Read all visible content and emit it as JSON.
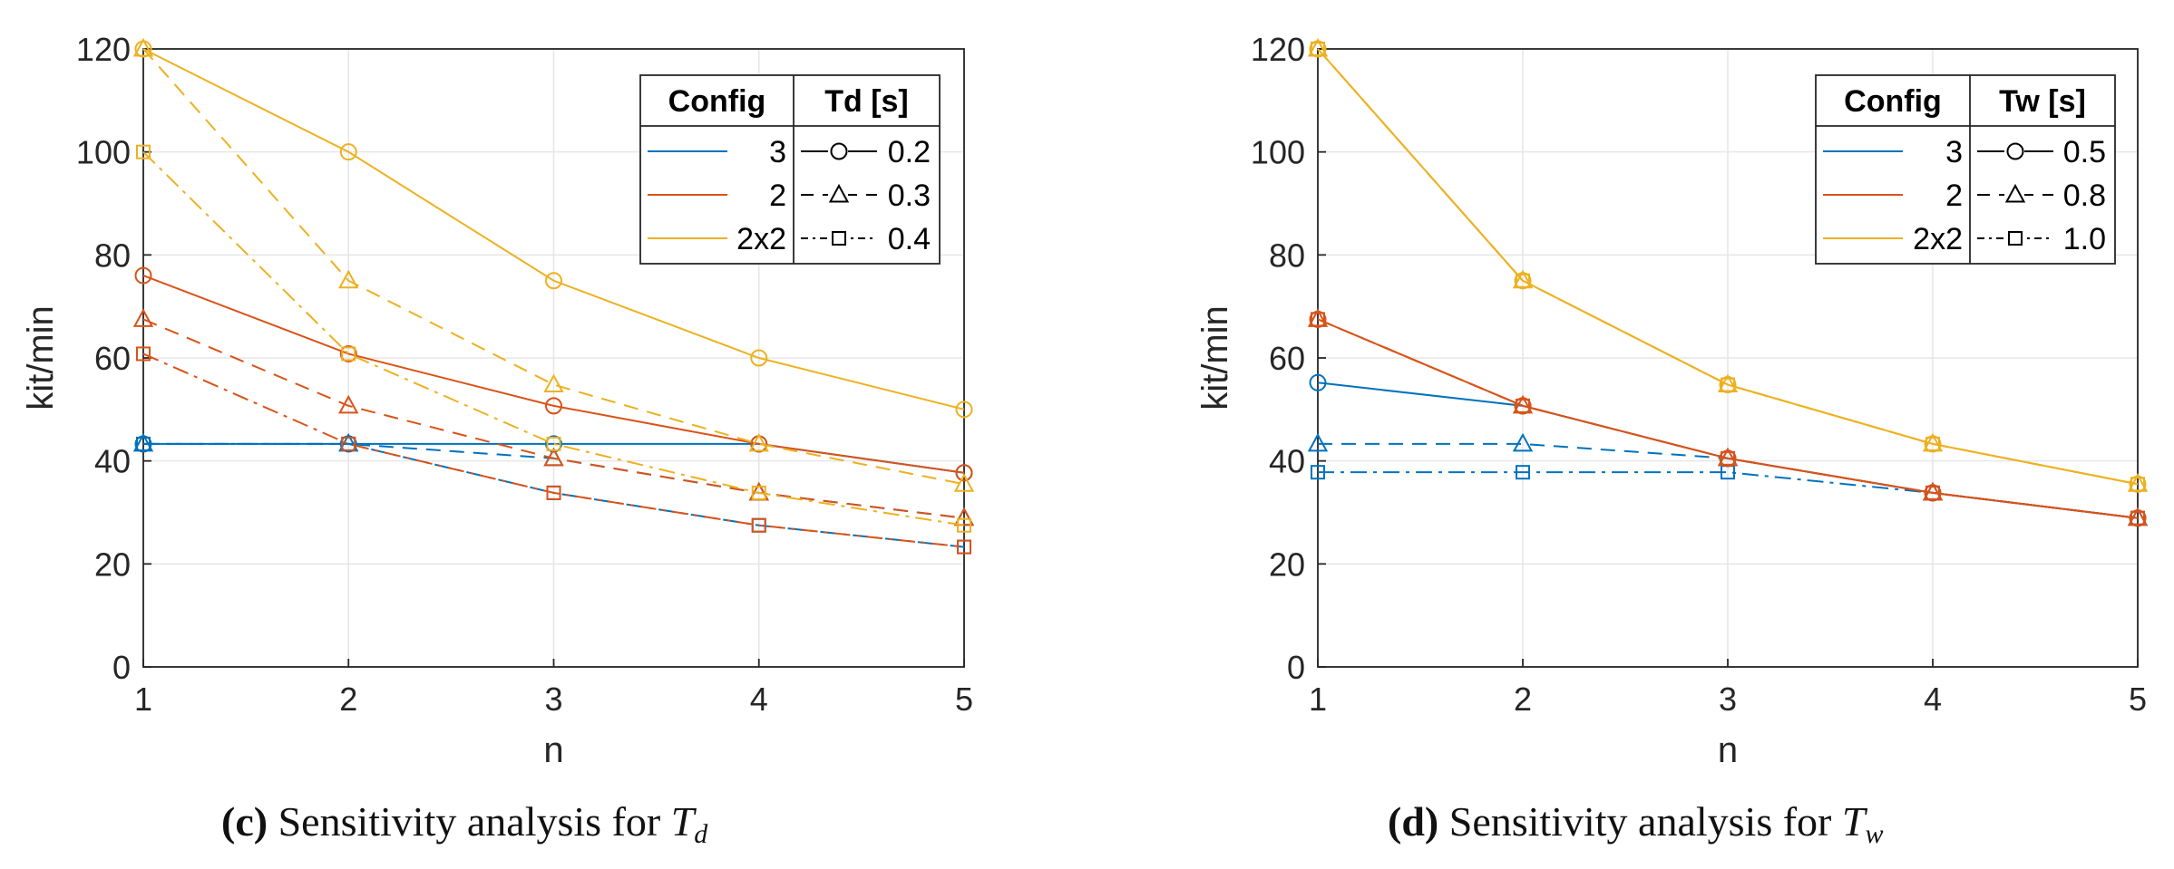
{
  "colors": {
    "config_3": "#0072BD",
    "config_2": "#D95319",
    "config_2x2": "#EDB120",
    "grid": "#e6e6e6",
    "axis": "#262626"
  },
  "chart_data": [
    {
      "type": "line",
      "caption_letter": "(c)",
      "caption_text": "Sensitivity analysis for",
      "caption_var": "T",
      "caption_sub": "d",
      "xlabel": "n",
      "ylabel": "kit/min",
      "x": [
        1,
        2,
        3,
        4,
        5
      ],
      "xticks": [
        "1",
        "2",
        "3",
        "4",
        "5"
      ],
      "yticks": [
        "0",
        "20",
        "40",
        "60",
        "80",
        "100",
        "120"
      ],
      "xlim": [
        1,
        5
      ],
      "ylim": [
        0,
        120
      ],
      "grid": true,
      "legend": {
        "position": "top-right",
        "header_config": "Config",
        "header_param": "Td [s]",
        "configs": [
          "3",
          "2",
          "2x2"
        ],
        "params": [
          "0.2",
          "0.3",
          "0.4"
        ]
      },
      "series": [
        {
          "name": "3, Td=0.2",
          "config": "3",
          "param": "0.2",
          "values": [
            43.3,
            43.3,
            43.3,
            43.3,
            37.7
          ]
        },
        {
          "name": "3, Td=0.3",
          "config": "3",
          "param": "0.3",
          "values": [
            43.3,
            43.3,
            40.5,
            33.8,
            28.9
          ]
        },
        {
          "name": "3, Td=0.4",
          "config": "3",
          "param": "0.4",
          "values": [
            43.3,
            43.3,
            33.8,
            27.5,
            23.3
          ]
        },
        {
          "name": "2, Td=0.2",
          "config": "2",
          "param": "0.2",
          "values": [
            76.0,
            60.8,
            50.7,
            43.3,
            37.7
          ]
        },
        {
          "name": "2, Td=0.3",
          "config": "2",
          "param": "0.3",
          "values": [
            67.5,
            50.7,
            40.5,
            33.8,
            28.9
          ]
        },
        {
          "name": "2, Td=0.4",
          "config": "2",
          "param": "0.4",
          "values": [
            60.8,
            43.3,
            33.8,
            27.5,
            23.3
          ]
        },
        {
          "name": "2x2, Td=0.2",
          "config": "2x2",
          "param": "0.2",
          "values": [
            120,
            100,
            75,
            60,
            50
          ]
        },
        {
          "name": "2x2, Td=0.3",
          "config": "2x2",
          "param": "0.3",
          "values": [
            120,
            75,
            54.8,
            43.3,
            35.5
          ]
        },
        {
          "name": "2x2, Td=0.4",
          "config": "2x2",
          "param": "0.4",
          "values": [
            100,
            60.8,
            43.3,
            33.8,
            27.5
          ]
        }
      ]
    },
    {
      "type": "line",
      "caption_letter": "(d)",
      "caption_text": "Sensitivity analysis for",
      "caption_var": "T",
      "caption_sub": "w",
      "xlabel": "n",
      "ylabel": "kit/min",
      "x": [
        1,
        2,
        3,
        4,
        5
      ],
      "xticks": [
        "1",
        "2",
        "3",
        "4",
        "5"
      ],
      "yticks": [
        "0",
        "20",
        "40",
        "60",
        "80",
        "100",
        "120"
      ],
      "xlim": [
        1,
        5
      ],
      "ylim": [
        0,
        120
      ],
      "grid": true,
      "legend": {
        "position": "top-right",
        "header_config": "Config",
        "header_param": "Tw [s]",
        "configs": [
          "3",
          "2",
          "2x2"
        ],
        "params": [
          "0.5",
          "0.8",
          "1.0"
        ]
      },
      "series": [
        {
          "name": "3, Tw=0.5",
          "config": "3",
          "param": "0.5",
          "values": [
            55.2,
            50.7,
            40.5,
            33.8,
            28.9
          ]
        },
        {
          "name": "3, Tw=0.8",
          "config": "3",
          "param": "0.8",
          "values": [
            43.3,
            43.3,
            40.5,
            33.8,
            28.9
          ]
        },
        {
          "name": "3, Tw=1.0",
          "config": "3",
          "param": "1.0",
          "values": [
            37.8,
            37.8,
            37.8,
            33.8,
            28.9
          ]
        },
        {
          "name": "2, Tw=0.5",
          "config": "2",
          "param": "0.5",
          "values": [
            67.5,
            50.7,
            40.5,
            33.8,
            28.9
          ]
        },
        {
          "name": "2, Tw=0.8",
          "config": "2",
          "param": "0.8",
          "values": [
            67.5,
            50.7,
            40.5,
            33.8,
            28.9
          ]
        },
        {
          "name": "2, Tw=1.0",
          "config": "2",
          "param": "1.0",
          "values": [
            67.5,
            50.7,
            40.5,
            33.8,
            28.9
          ]
        },
        {
          "name": "2x2, Tw=0.5",
          "config": "2x2",
          "param": "0.5",
          "values": [
            120,
            75,
            54.8,
            43.3,
            35.5
          ]
        },
        {
          "name": "2x2, Tw=0.8",
          "config": "2x2",
          "param": "0.8",
          "values": [
            120,
            75,
            54.8,
            43.3,
            35.5
          ]
        },
        {
          "name": "2x2, Tw=1.0",
          "config": "2x2",
          "param": "1.0",
          "values": [
            120,
            75,
            54.8,
            43.3,
            35.5
          ]
        }
      ]
    }
  ]
}
